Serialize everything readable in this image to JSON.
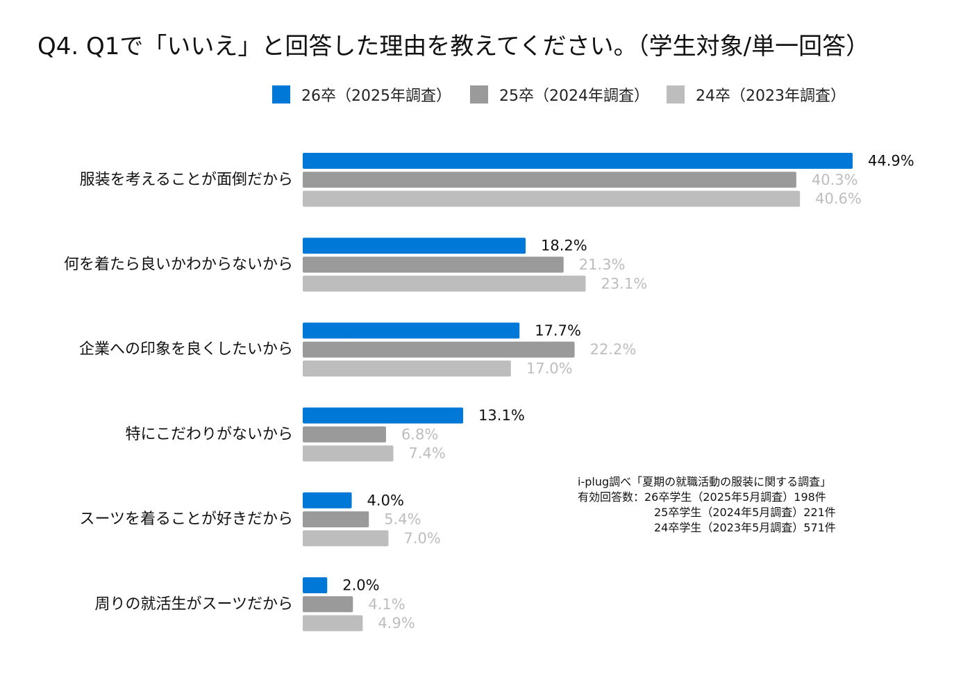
{
  "colors": {
    "y2025": "#0078d7",
    "y2024": "#9a9a9a",
    "y2023": "#bdbdbd",
    "label_highlight": "#111111",
    "label_muted": "#bdbdbd"
  },
  "chart_data": {
    "type": "bar",
    "orientation": "horizontal",
    "title": "Q4. Q1で「いいえ」と回答した理由を教えてください。（学生対象/単一回答）",
    "categories": [
      "服装を考えることが面倒だから",
      "何を着たら良いかわからないから",
      "企業への印象を良くしたいから",
      "特にこだわりがないから",
      "スーツを着ることが好きだから",
      "周りの就活生がスーツだから"
    ],
    "series": [
      {
        "name": "26卒（2025年調査）",
        "values": [
          44.9,
          18.2,
          17.7,
          13.1,
          4.0,
          2.0
        ]
      },
      {
        "name": "25卒（2024年調査）",
        "values": [
          40.3,
          21.3,
          22.2,
          6.8,
          5.4,
          4.1
        ]
      },
      {
        "name": "24卒（2023年調査）",
        "values": [
          40.6,
          23.1,
          17.0,
          7.4,
          7.0,
          4.9
        ]
      }
    ],
    "value_labels": [
      [
        "44.9%",
        "18.2%",
        "17.7%",
        "13.1%",
        "4.0%",
        "2.0%"
      ],
      [
        "40.3%",
        "21.3%",
        "22.2%",
        "6.8%",
        "5.4%",
        "4.1%"
      ],
      [
        "40.6%",
        "23.1%",
        "17.0%",
        "7.4%",
        "7.0%",
        "4.9%"
      ]
    ],
    "unit": "%",
    "xlim": [
      0,
      45
    ],
    "grid": false,
    "legend_position": "top"
  },
  "note": {
    "source": "i-plug調べ「夏期の就職活動の服装に関する調査」",
    "sample_line1": "有効回答数：26卒学生（2025年5月調査）198件",
    "sample_line2": "25卒学生（2024年5月調査）221件",
    "sample_line3": "24卒学生（2023年5月調査）571件"
  }
}
